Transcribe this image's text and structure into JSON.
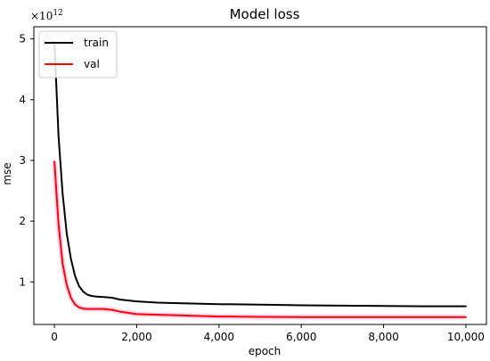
{
  "chart_data": {
    "type": "line",
    "title": "Model loss",
    "xlabel": "epoch",
    "ylabel": "mse",
    "y_multiplier": {
      "base": "×10",
      "exponent": "12"
    },
    "xlim": [
      -500,
      10500
    ],
    "ylim": [
      0.3,
      5.2
    ],
    "x_ticks": [
      0,
      2000,
      4000,
      6000,
      8000,
      10000
    ],
    "x_tick_labels": [
      "0",
      "2,000",
      "4,000",
      "6,000",
      "8,000",
      "10,000"
    ],
    "y_ticks": [
      1,
      2,
      3,
      4,
      5
    ],
    "y_tick_labels": [
      "1",
      "2",
      "3",
      "4",
      "5"
    ],
    "grid": false,
    "legend_position": "top-left",
    "series": [
      {
        "name": "train",
        "color": "#000000",
        "x": [
          0,
          100,
          200,
          300,
          400,
          500,
          600,
          700,
          800,
          900,
          1000,
          1200,
          1400,
          1600,
          2000,
          2500,
          3000,
          4000,
          5000,
          6000,
          7000,
          8000,
          9000,
          10000
        ],
        "y": [
          4.95,
          3.4,
          2.45,
          1.8,
          1.38,
          1.1,
          0.93,
          0.84,
          0.79,
          0.77,
          0.76,
          0.75,
          0.74,
          0.71,
          0.68,
          0.66,
          0.65,
          0.635,
          0.625,
          0.615,
          0.61,
          0.605,
          0.6,
          0.6
        ]
      },
      {
        "name": "val",
        "color": "#ff0000",
        "x": [
          0,
          100,
          200,
          300,
          400,
          500,
          600,
          700,
          800,
          1000,
          1200,
          1400,
          1600,
          1800,
          2000,
          3000,
          4000,
          5000,
          6000,
          7000,
          8000,
          9000,
          10000
        ],
        "y": [
          2.98,
          1.95,
          1.3,
          0.95,
          0.74,
          0.63,
          0.58,
          0.56,
          0.555,
          0.555,
          0.555,
          0.54,
          0.51,
          0.49,
          0.47,
          0.45,
          0.43,
          0.425,
          0.42,
          0.42,
          0.42,
          0.42,
          0.42
        ]
      }
    ]
  }
}
